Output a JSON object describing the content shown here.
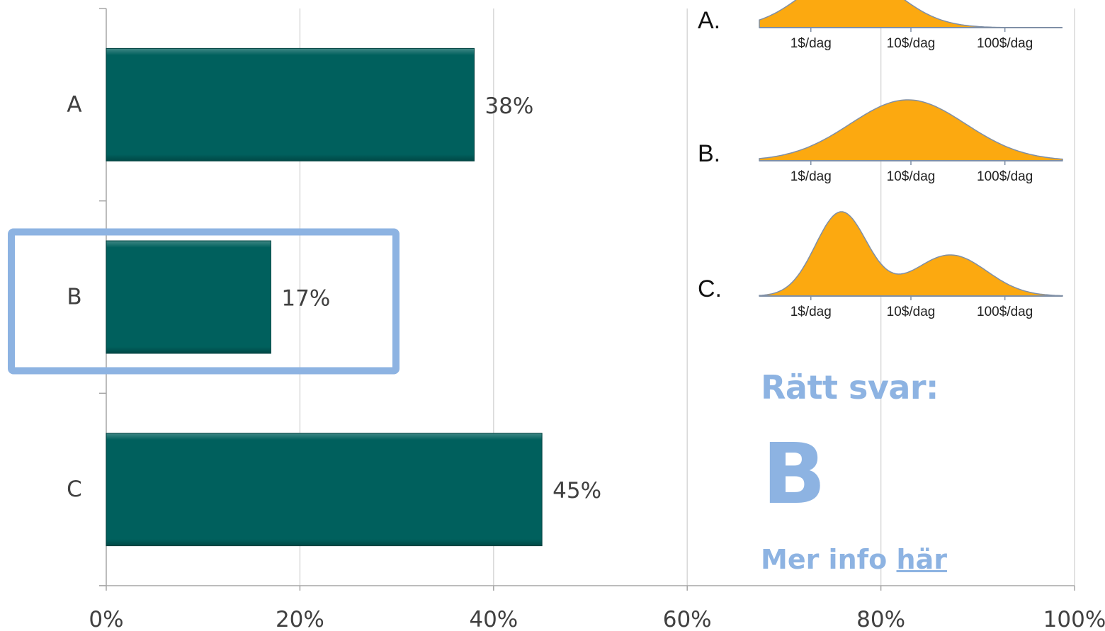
{
  "chart_data": {
    "type": "bar",
    "orientation": "horizontal",
    "categories": [
      "A",
      "B",
      "C"
    ],
    "values": [
      38,
      17,
      45
    ],
    "data_labels": [
      "38%",
      "17%",
      "45%"
    ],
    "x_ticks": [
      "0%",
      "20%",
      "40%",
      "60%",
      "80%",
      "100%"
    ],
    "xlim": [
      0,
      100
    ],
    "grid": "vertical",
    "bar_color": "#00605d",
    "highlighted_category": "B",
    "highlight_color": "#8db3e2"
  },
  "options": [
    {
      "label": "A.",
      "ticks": [
        "1$/dag",
        "10$/dag",
        "100$/dag"
      ]
    },
    {
      "label": "B.",
      "ticks": [
        "1$/dag",
        "10$/dag",
        "100$/dag"
      ]
    },
    {
      "label": "C.",
      "ticks": [
        "1$/dag",
        "10$/dag",
        "100$/dag"
      ]
    }
  ],
  "distribution_fill": "#fca910",
  "answer": {
    "heading": "Rätt svar:",
    "letter": "B",
    "info_text": "Mer info ",
    "link_text": "här"
  }
}
